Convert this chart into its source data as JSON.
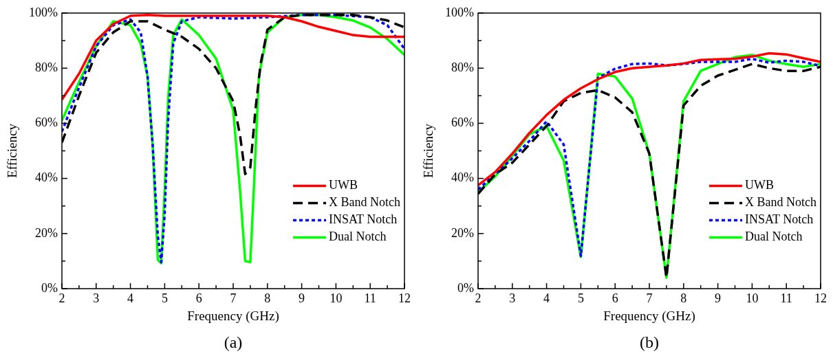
{
  "chart_data": [
    {
      "type": "line",
      "xlabel": "Frequency (GHz)",
      "ylabel": "Efficiency",
      "annotations": [
        "(a)"
      ],
      "grid": false,
      "legend": "bottom right",
      "marker": "none",
      "xlim": [
        2,
        12
      ],
      "xticks": [
        2,
        {
          "value": 2.5,
          "label": null
        },
        3,
        {
          "value": 3.5,
          "label": null
        },
        4,
        {
          "value": 4.5,
          "label": null
        },
        5,
        {
          "value": 5.5,
          "label": null
        },
        6,
        {
          "value": 6.5,
          "label": null
        },
        7,
        {
          "value": 7.5,
          "label": null
        },
        8,
        {
          "value": 8.5,
          "label": null
        },
        9,
        {
          "value": 9.5,
          "label": null
        },
        10,
        {
          "value": 10.5,
          "label": null
        },
        11,
        {
          "value": 11.5,
          "label": null
        },
        12
      ],
      "ylim": [
        0,
        100
      ],
      "yticks": [
        {
          "value": 0,
          "label": "0%"
        },
        {
          "value": 10,
          "label": null
        },
        {
          "value": 20,
          "label": "20%"
        },
        {
          "value": 30,
          "label": null
        },
        {
          "value": 40,
          "label": "40%"
        },
        {
          "value": 50,
          "label": null
        },
        {
          "value": 60,
          "label": "60%"
        },
        {
          "value": 70,
          "label": null
        },
        {
          "value": 80,
          "label": "80%"
        },
        {
          "value": 90,
          "label": null
        },
        {
          "value": 100,
          "label": "100%"
        }
      ],
      "series": [
        {
          "name": "UWB",
          "color": "#ff0000",
          "line_style": "solid",
          "x": [
            2,
            2.5,
            3,
            3.5,
            4,
            4.5,
            5,
            6,
            7,
            8,
            8.5,
            9,
            9.5,
            10,
            10.5,
            11,
            11.5,
            12
          ],
          "values": [
            68.6,
            78,
            90,
            96,
            99,
            99.3,
            99,
            99,
            99,
            99,
            98.5,
            97,
            95,
            93.5,
            92,
            91.4,
            91.4,
            91.4
          ]
        },
        {
          "name": "X Band Notch",
          "color": "#000000",
          "line_style": "dashed",
          "x": [
            2,
            2.5,
            3,
            3.5,
            4,
            4.5,
            5,
            5.5,
            6,
            6.5,
            7,
            7.2,
            7.35,
            7.5,
            7.65,
            7.8,
            8,
            8.5,
            9,
            10,
            10.5,
            11,
            11.5,
            12
          ],
          "values": [
            53,
            70,
            85.6,
            93,
            97,
            97,
            94,
            91.4,
            87,
            80,
            68,
            55.7,
            41.6,
            44,
            65,
            81.5,
            94,
            98.5,
            99.3,
            99.3,
            99.3,
            98.5,
            97.3,
            94.8
          ]
        },
        {
          "name": "INSAT Notch",
          "color": "#0000ff",
          "line_style": "dotted",
          "x": [
            2,
            2.5,
            3,
            3.5,
            4,
            4.3,
            4.5,
            4.65,
            4.8,
            4.9,
            5,
            5.1,
            5.25,
            5.5,
            6,
            7,
            8,
            9,
            10,
            11,
            11.5,
            12
          ],
          "values": [
            57,
            73,
            88,
            95.6,
            97.7,
            93,
            77,
            52,
            19,
            9.6,
            27,
            60.7,
            89,
            97,
            98.5,
            98,
            98.5,
            99.3,
            99.3,
            98.5,
            95.6,
            87
          ]
        },
        {
          "name": "Dual Notch",
          "color": "#00ff00",
          "line_style": "solid",
          "x": [
            2,
            2.5,
            3,
            3.5,
            4,
            4.3,
            4.5,
            4.65,
            4.8,
            4.9,
            5,
            5.1,
            5.25,
            5.5,
            6,
            6.5,
            7,
            7.2,
            7.35,
            7.5,
            7.6,
            7.75,
            8,
            8.5,
            9,
            9.5,
            10,
            10.5,
            11,
            11.5,
            12
          ],
          "values": [
            61,
            75,
            88,
            97,
            95.6,
            89,
            77,
            52,
            10.4,
            9.2,
            35.7,
            69,
            92,
            97.7,
            92,
            83.5,
            64.8,
            35.7,
            10,
            9.6,
            35.7,
            77,
            93,
            98.5,
            99.3,
            99.3,
            98.5,
            97.3,
            94.8,
            90.6,
            84.8
          ]
        }
      ]
    },
    {
      "type": "line",
      "xlabel": "Frequency (GHz)",
      "ylabel": "Efficiency",
      "annotations": [
        "(b)"
      ],
      "grid": false,
      "legend": "bottom right",
      "marker": "none",
      "xlim": [
        2,
        12
      ],
      "xticks": [
        2,
        {
          "value": 2.5,
          "label": null
        },
        3,
        {
          "value": 3.5,
          "label": null
        },
        4,
        {
          "value": 4.5,
          "label": null
        },
        5,
        {
          "value": 5.5,
          "label": null
        },
        6,
        {
          "value": 6.5,
          "label": null
        },
        7,
        {
          "value": 7.5,
          "label": null
        },
        8,
        {
          "value": 8.5,
          "label": null
        },
        9,
        {
          "value": 9.5,
          "label": null
        },
        10,
        {
          "value": 10.5,
          "label": null
        },
        11,
        {
          "value": 11.5,
          "label": null
        },
        12
      ],
      "ylim": [
        0,
        100
      ],
      "yticks": [
        {
          "value": 0,
          "label": "0%"
        },
        {
          "value": 10,
          "label": null
        },
        {
          "value": 20,
          "label": "20%"
        },
        {
          "value": 30,
          "label": null
        },
        {
          "value": 40,
          "label": "40%"
        },
        {
          "value": 50,
          "label": null
        },
        {
          "value": 60,
          "label": "60%"
        },
        {
          "value": 70,
          "label": null
        },
        {
          "value": 80,
          "label": "80%"
        },
        {
          "value": 90,
          "label": null
        },
        {
          "value": 100,
          "label": "100%"
        }
      ],
      "x": [
        2,
        2.5,
        3,
        3.5,
        4,
        4.5,
        5,
        5.5,
        6,
        6.5,
        7,
        7.5,
        8,
        8.5,
        9,
        9.5,
        10,
        10.5,
        11,
        11.5,
        12
      ],
      "series": [
        {
          "name": "UWB",
          "color": "#ff0000",
          "line_style": "solid",
          "values": [
            37.5,
            42.3,
            49,
            56.5,
            63,
            68.5,
            72.7,
            76,
            78.6,
            80,
            80.5,
            81,
            81.7,
            83,
            83.2,
            83.4,
            84.2,
            85.4,
            85,
            83.6,
            82.3
          ]
        },
        {
          "name": "X Band Notch",
          "color": "#000000",
          "line_style": "dashed",
          "values": [
            34.4,
            41.5,
            45.7,
            52.3,
            59,
            68,
            71,
            72,
            69.4,
            64,
            49,
            4,
            66.5,
            73.6,
            77.3,
            79.4,
            81.5,
            80,
            79,
            79,
            80.5
          ]
        },
        {
          "name": "INSAT Notch",
          "color": "#0000ff",
          "line_style": "dotted",
          "values": [
            36,
            41.5,
            47.3,
            53.6,
            60.7,
            52.3,
            11.9,
            76.4,
            79.8,
            81.5,
            81.7,
            81,
            81.5,
            82.3,
            82.3,
            82.3,
            83.4,
            82,
            82.7,
            82.3,
            80.8
          ]
        },
        {
          "name": "Dual Notch",
          "color": "#00ff00",
          "line_style": "solid",
          "values": [
            35,
            40.7,
            48.2,
            56,
            59,
            46.5,
            11.5,
            78,
            77,
            69,
            49,
            4,
            68,
            79,
            81.5,
            84,
            84.8,
            82.7,
            81.5,
            80.5,
            81.5
          ]
        }
      ]
    }
  ]
}
